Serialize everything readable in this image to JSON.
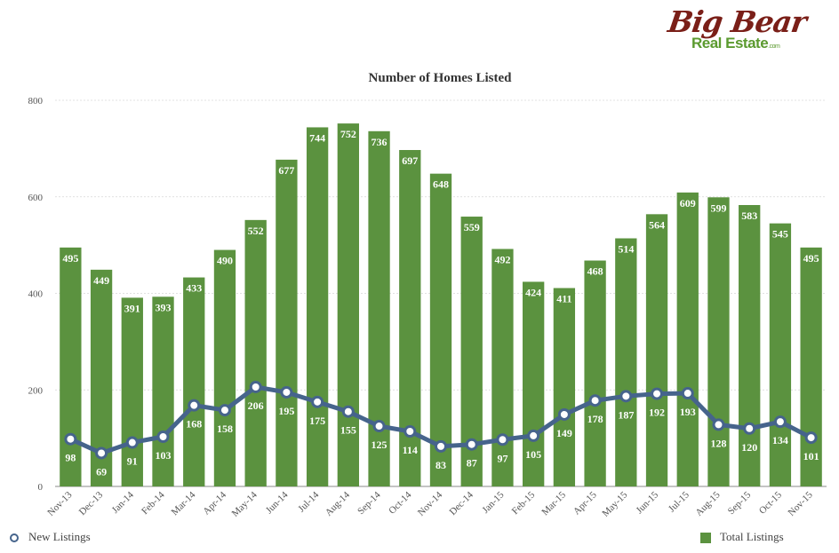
{
  "logo": {
    "big": "Big Bear",
    "sub": "Real Estate",
    "com": ".com"
  },
  "chart_data": {
    "type": "bar",
    "title": "Number of Homes Listed",
    "categories": [
      "Nov-13",
      "Dec-13",
      "Jan-14",
      "Feb-14",
      "Mar-14",
      "Apr-14",
      "May-14",
      "Jun-14",
      "Jul-14",
      "Aug-14",
      "Sep-14",
      "Oct-14",
      "Nov-14",
      "Dec-14",
      "Jan-15",
      "Feb-15",
      "Mar-15",
      "Apr-15",
      "May-15",
      "Jun-15",
      "Jul-15",
      "Aug-15",
      "Sep-15",
      "Oct-15",
      "Nov-15"
    ],
    "series": [
      {
        "name": "Total Listings",
        "type": "bar",
        "color": "#5b923f",
        "values": [
          495,
          449,
          391,
          393,
          433,
          490,
          552,
          677,
          744,
          752,
          736,
          697,
          648,
          559,
          492,
          424,
          411,
          468,
          514,
          564,
          609,
          599,
          583,
          545,
          495
        ]
      },
      {
        "name": "New Listings",
        "type": "line",
        "color": "#46648c",
        "values": [
          98,
          69,
          91,
          103,
          168,
          158,
          206,
          195,
          175,
          155,
          125,
          114,
          83,
          87,
          97,
          105,
          149,
          178,
          187,
          192,
          193,
          128,
          120,
          134,
          101
        ]
      }
    ],
    "ylim": [
      0,
      800
    ],
    "yticks": [
      0,
      200,
      400,
      600,
      800
    ],
    "grid": true,
    "legend": "bottom"
  }
}
